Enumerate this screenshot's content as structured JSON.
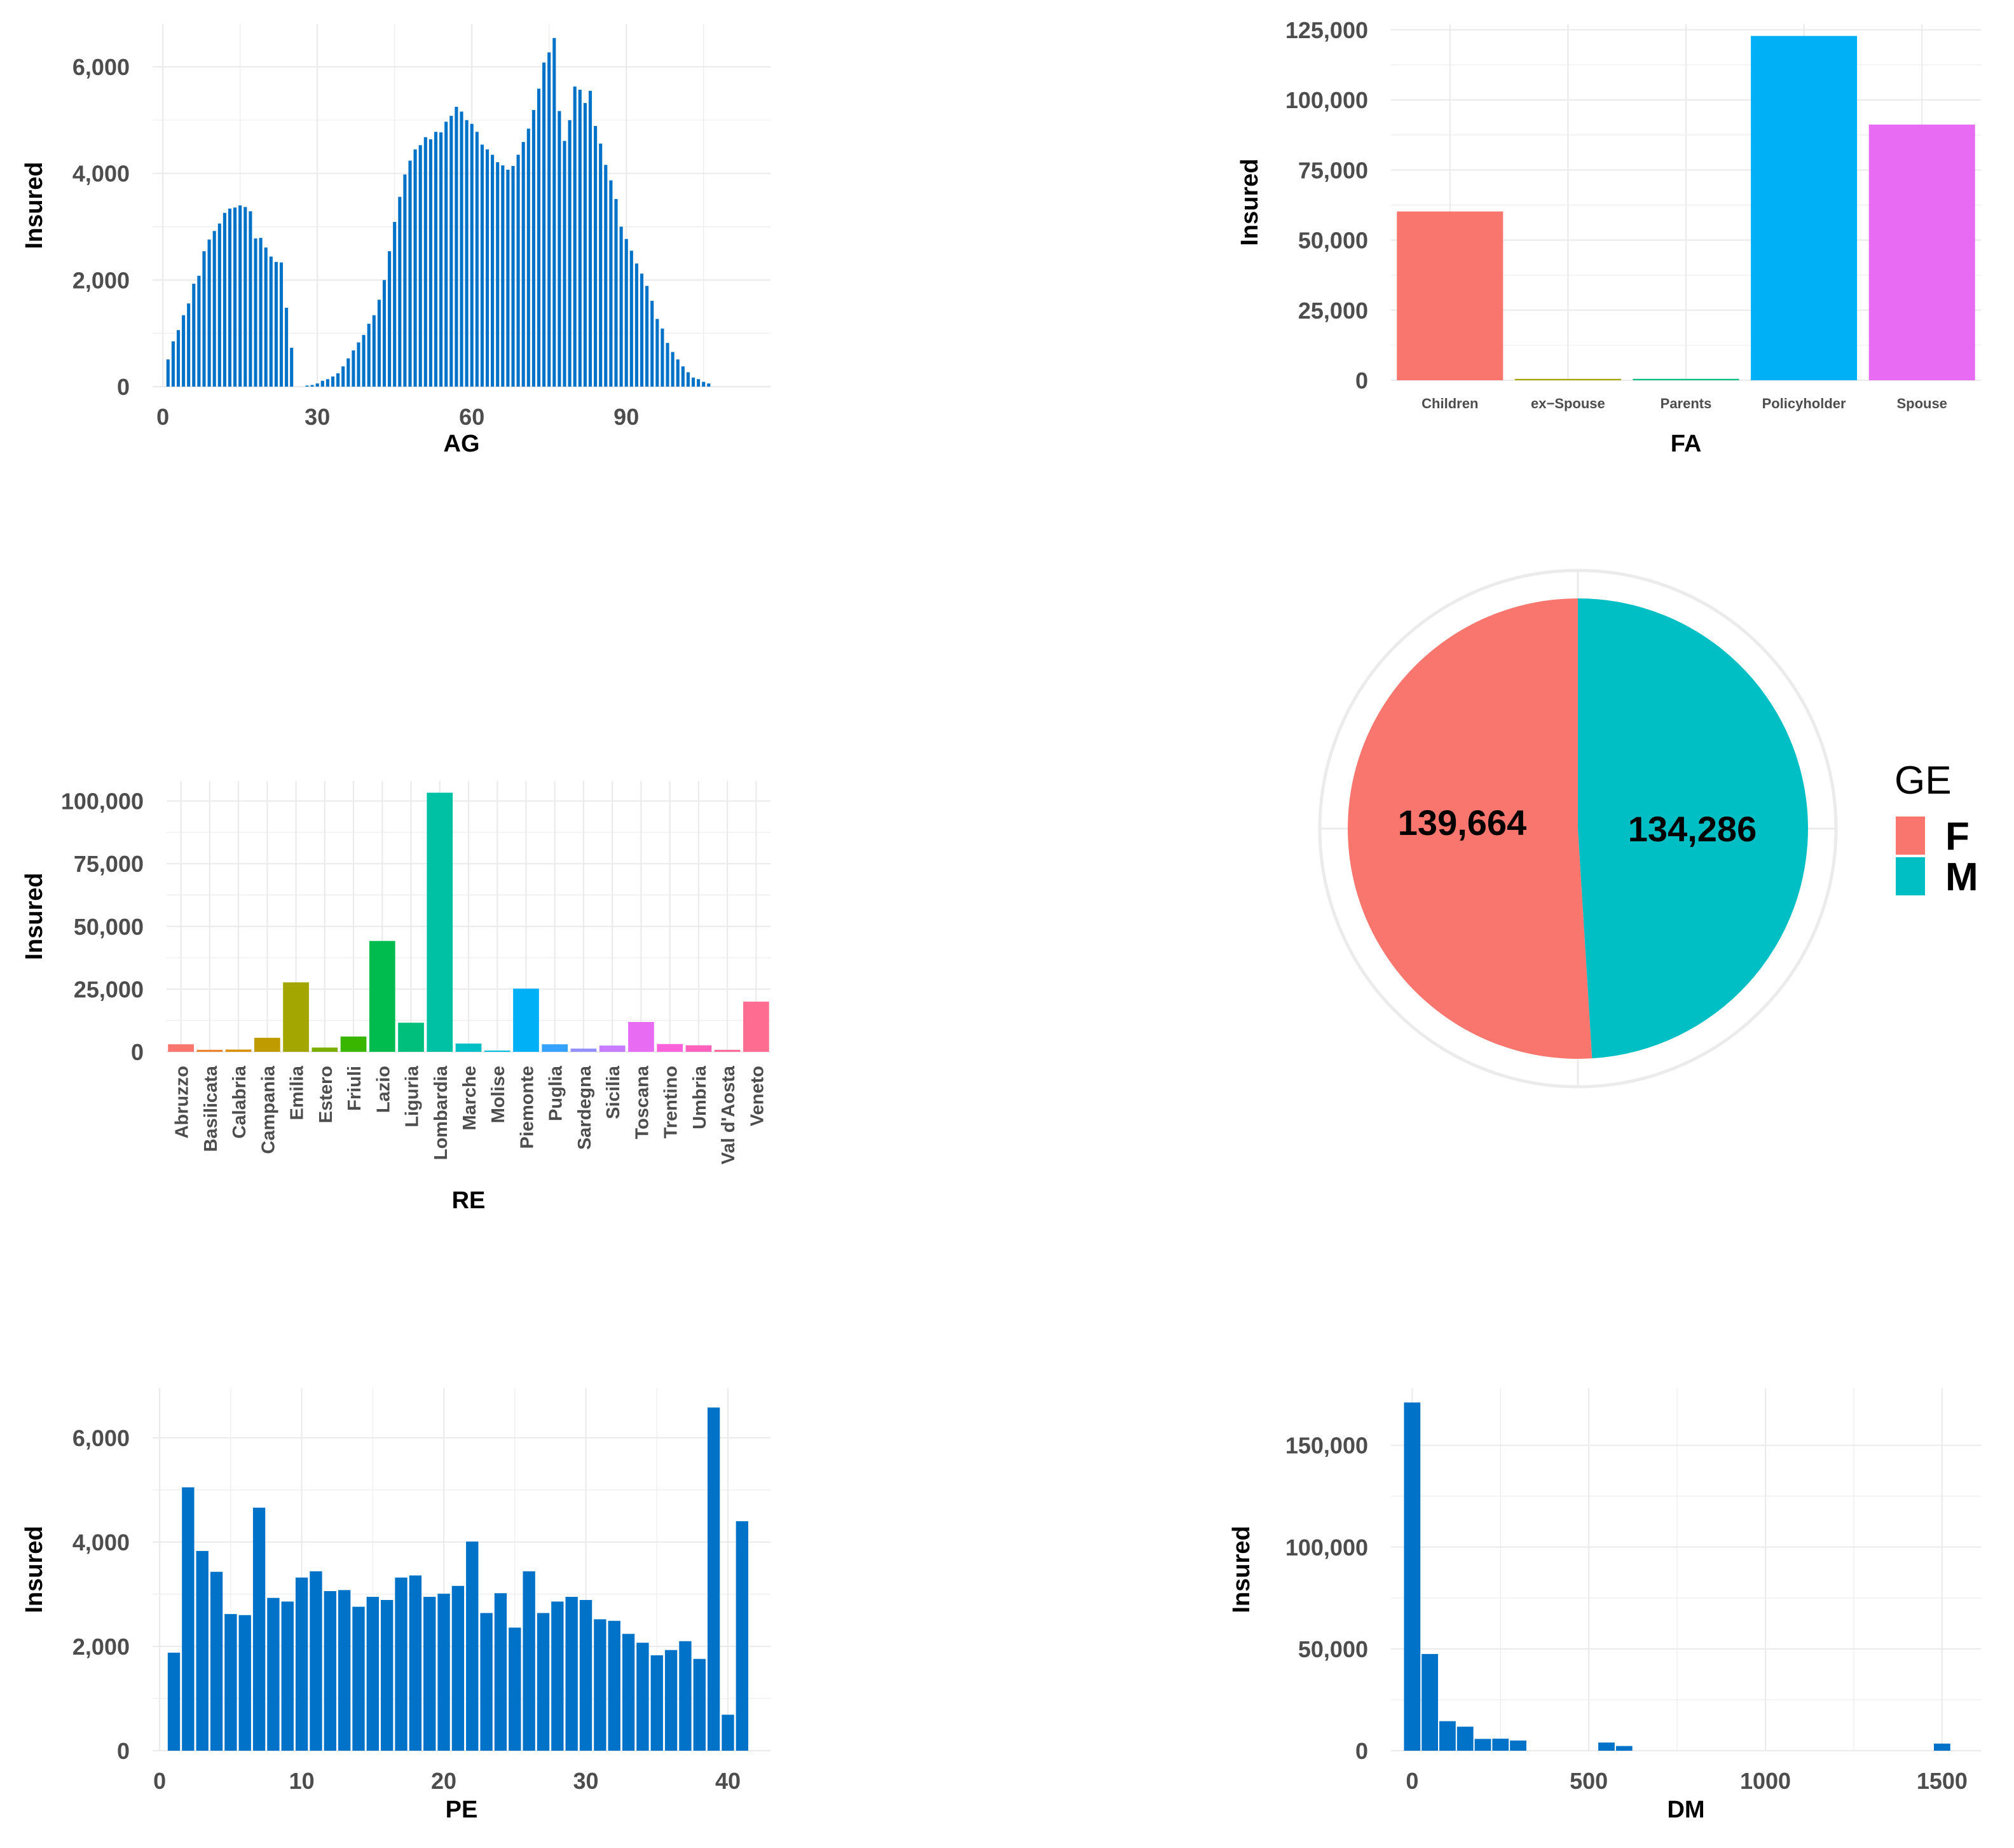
{
  "colors": {
    "hist": "#0072c7",
    "grid": "#ebebeb",
    "axis_text": "#4d4d4d",
    "title": "#000000",
    "pie_F": "#f8766d",
    "pie_M": "#00bfc4",
    "pie_ring": "#ebebeb"
  },
  "chart_data": [
    {
      "id": "ag",
      "type": "bar",
      "title": "",
      "xlabel": "AG",
      "ylabel": "Insured",
      "xlim": [
        -2,
        118
      ],
      "ylim": [
        0,
        6800
      ],
      "xticks": [
        0,
        30,
        60,
        90
      ],
      "yticks": [
        0,
        2000,
        4000,
        6000
      ],
      "ytick_labels": [
        "0",
        "2,000",
        "4,000",
        "6,000"
      ],
      "x_start": 1,
      "values": [
        510,
        850,
        1060,
        1340,
        1560,
        1930,
        2080,
        2540,
        2760,
        2920,
        3060,
        3260,
        3340,
        3360,
        3400,
        3370,
        3290,
        2780,
        2790,
        2610,
        2440,
        2340,
        2330,
        1480,
        730,
        0,
        0,
        20,
        30,
        60,
        110,
        140,
        190,
        250,
        380,
        530,
        680,
        830,
        970,
        1180,
        1340,
        1630,
        2000,
        2540,
        3090,
        3560,
        3980,
        4240,
        4450,
        4530,
        4680,
        4640,
        4780,
        4770,
        4970,
        5080,
        5250,
        5160,
        5000,
        4930,
        4780,
        4540,
        4450,
        4350,
        4210,
        4150,
        4070,
        4140,
        4350,
        4590,
        4840,
        5190,
        5590,
        6080,
        6270,
        6540,
        5170,
        4610,
        5000,
        5630,
        5570,
        5320,
        5550,
        4890,
        4560,
        4160,
        3870,
        3520,
        3000,
        2770,
        2550,
        2310,
        2120,
        1890,
        1610,
        1270,
        1090,
        820,
        650,
        510,
        380,
        270,
        170,
        140,
        90,
        60
      ]
    },
    {
      "id": "fa",
      "type": "bar",
      "xlabel": "FA",
      "ylabel": "Insured",
      "ylim": [
        0,
        127000
      ],
      "yticks": [
        0,
        25000,
        50000,
        75000,
        100000,
        125000
      ],
      "ytick_labels": [
        "0",
        "25,000",
        "50,000",
        "75,000",
        "100,000",
        "125,000"
      ],
      "categories": [
        "Children",
        "ex−Spouse",
        "Parents",
        "Policyholder",
        "Spouse"
      ],
      "values": [
        60200,
        500,
        500,
        122800,
        91200
      ],
      "colors": [
        "#f8766d",
        "#a3a500",
        "#00bf7d",
        "#00b0f6",
        "#e76bf3"
      ]
    },
    {
      "id": "re",
      "type": "bar",
      "xlabel": "RE",
      "ylabel": "Insured",
      "ylim": [
        0,
        108000
      ],
      "yticks": [
        0,
        25000,
        50000,
        75000,
        100000
      ],
      "ytick_labels": [
        "0",
        "25,000",
        "50,000",
        "75,000",
        "100,000"
      ],
      "categories": [
        "Abruzzo",
        "Basilicata",
        "Calabria",
        "Campania",
        "Emilia",
        "Estero",
        "Friuli",
        "Lazio",
        "Liguria",
        "Lombardia",
        "Marche",
        "Molise",
        "Piemonte",
        "Puglia",
        "Sardegna",
        "Sicilia",
        "Toscana",
        "Trentino",
        "Umbria",
        "Val d'Aosta",
        "Veneto"
      ],
      "values": [
        3000,
        800,
        900,
        5600,
        27700,
        1700,
        6100,
        44200,
        11600,
        103300,
        3300,
        400,
        25200,
        3000,
        1300,
        2500,
        11900,
        3100,
        2600,
        800,
        20000
      ],
      "colors": [
        "#f8766d",
        "#ea8331",
        "#d89000",
        "#c09b00",
        "#a3a500",
        "#7cae00",
        "#39b600",
        "#00bb4e",
        "#00bf7d",
        "#00c1a3",
        "#00bfc4",
        "#00bae0",
        "#00b0f6",
        "#35a2ff",
        "#9590ff",
        "#c77cff",
        "#e76bf3",
        "#fa62db",
        "#ff62bc",
        "#ff6a98",
        "#ff6c91"
      ]
    },
    {
      "id": "ge",
      "type": "pie",
      "legend_title": "GE",
      "categories": [
        "F",
        "M"
      ],
      "values": [
        139664,
        134286
      ],
      "labels": [
        "139,664",
        "134,286"
      ],
      "legend_position": "right"
    },
    {
      "id": "pe",
      "type": "bar",
      "xlabel": "PE",
      "ylabel": "Insured",
      "xlim": [
        -0.5,
        43
      ],
      "ylim": [
        0,
        6950
      ],
      "xticks": [
        0,
        10,
        20,
        30,
        40
      ],
      "yticks": [
        0,
        2000,
        4000,
        6000
      ],
      "ytick_labels": [
        "0",
        "2,000",
        "4,000",
        "6,000"
      ],
      "x_start": 1,
      "values": [
        1880,
        5050,
        3830,
        3430,
        2620,
        2600,
        4660,
        2930,
        2860,
        3320,
        3440,
        3060,
        3080,
        2760,
        2950,
        2890,
        3320,
        3360,
        2950,
        3010,
        3160,
        4010,
        2640,
        3020,
        2360,
        3440,
        2640,
        2860,
        2950,
        2890,
        2520,
        2490,
        2240,
        2070,
        1830,
        1930,
        2100,
        1760,
        6580,
        690,
        4400
      ]
    },
    {
      "id": "dm",
      "type": "bar",
      "xlabel": "DM",
      "ylabel": "Insured",
      "xlim": [
        -60,
        1610
      ],
      "ylim": [
        0,
        178000
      ],
      "xticks": [
        0,
        500,
        1000,
        1500
      ],
      "yticks": [
        0,
        50000,
        100000,
        150000
      ],
      "ytick_labels": [
        "0",
        "50,000",
        "100,000",
        "150,000"
      ],
      "bin_width": 50,
      "x": [
        0,
        50,
        100,
        150,
        200,
        250,
        300,
        550,
        600,
        1500
      ],
      "values": [
        171000,
        47500,
        14500,
        11800,
        5800,
        5900,
        5000,
        4000,
        2300,
        3500
      ]
    }
  ]
}
